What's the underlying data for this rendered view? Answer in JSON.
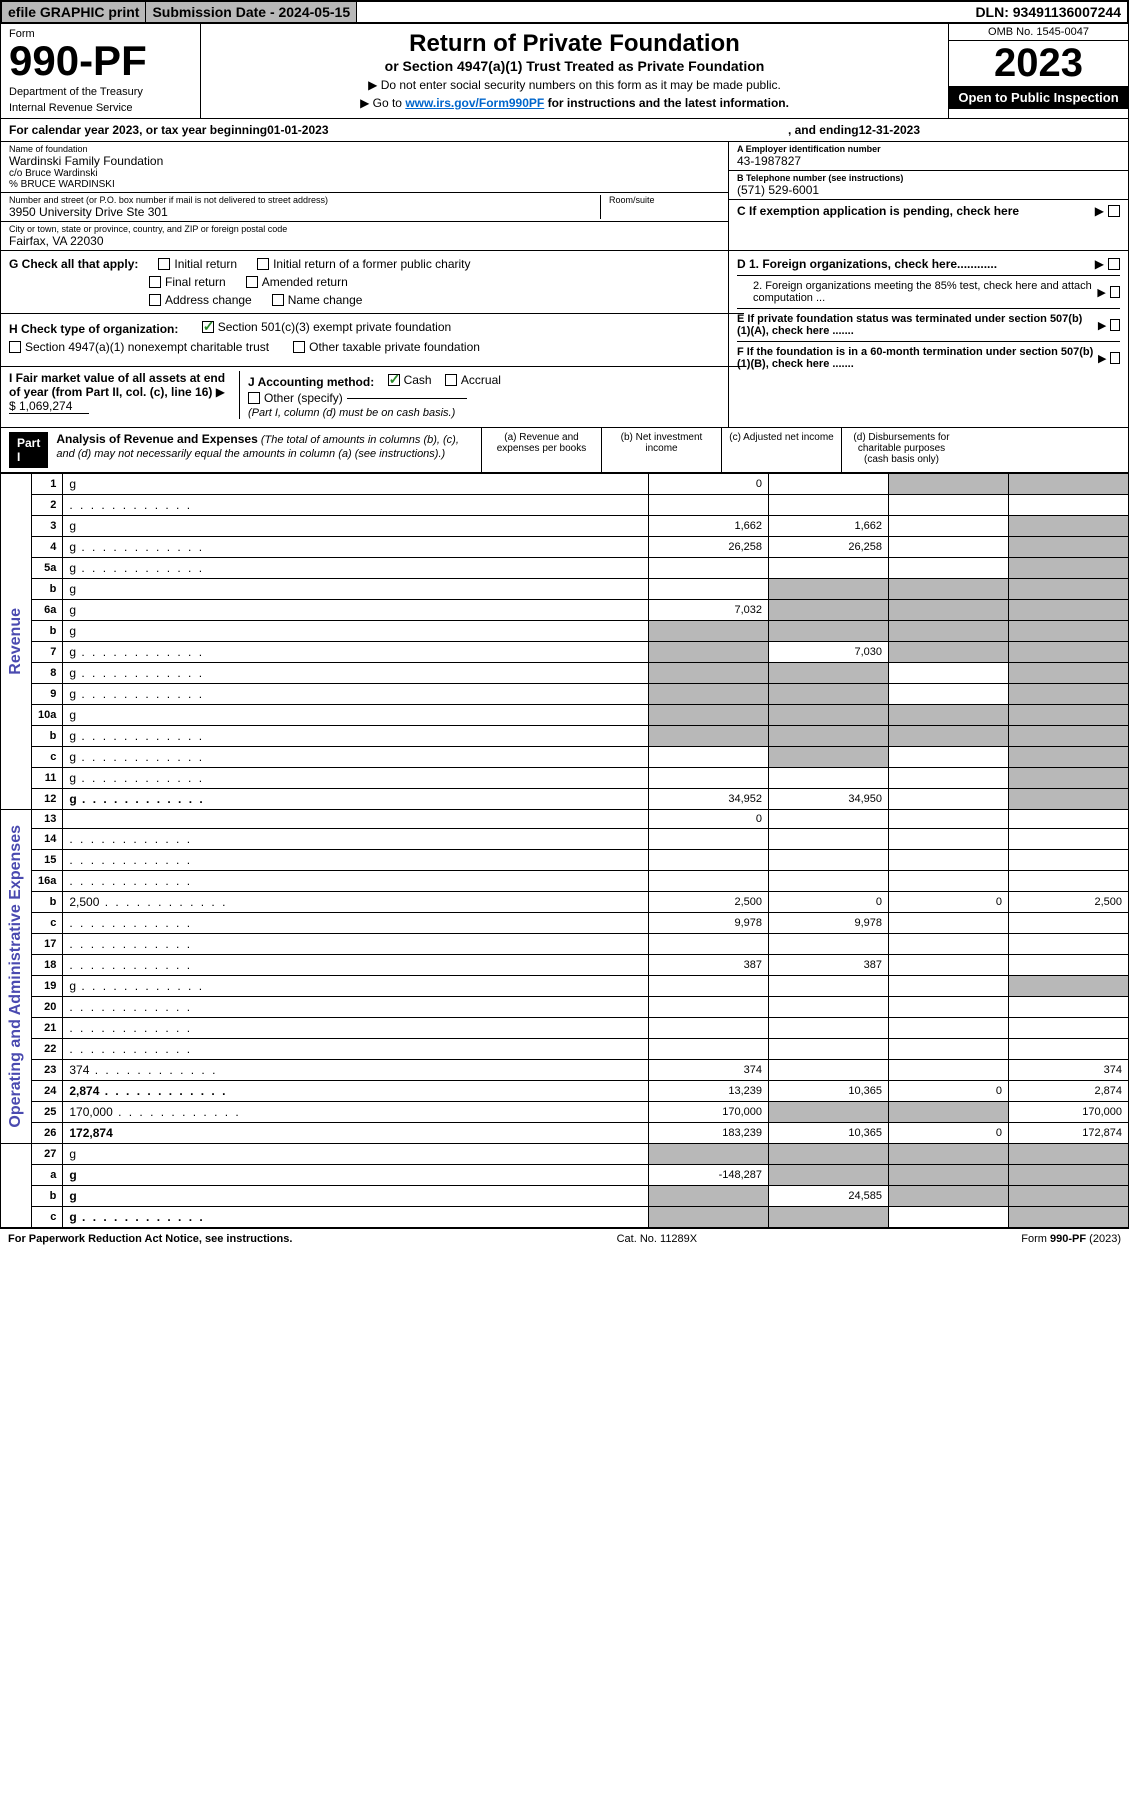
{
  "top": {
    "efile": "efile GRAPHIC print",
    "submission": "Submission Date - 2024-05-15",
    "dln": "DLN: 93491136007244"
  },
  "header": {
    "form_label": "Form",
    "form_num": "990-PF",
    "dept1": "Department of the Treasury",
    "dept2": "Internal Revenue Service",
    "title": "Return of Private Foundation",
    "subtitle": "or Section 4947(a)(1) Trust Treated as Private Foundation",
    "note1": "▶ Do not enter social security numbers on this form as it may be made public.",
    "note2_prefix": "▶ Go to ",
    "note2_link": "www.irs.gov/Form990PF",
    "note2_suffix": " for instructions and the latest information.",
    "omb": "OMB No. 1545-0047",
    "year": "2023",
    "open": "Open to Public Inspection"
  },
  "cal_year": {
    "prefix": "For calendar year 2023, or tax year beginning ",
    "begin": "01-01-2023",
    "mid": ", and ending ",
    "end": "12-31-2023"
  },
  "info": {
    "name_label": "Name of foundation",
    "name1": "Wardinski Family Foundation",
    "name2": "c/o Bruce Wardinski",
    "name3": "% BRUCE WARDINSKI",
    "street_label": "Number and street (or P.O. box number if mail is not delivered to street address)",
    "street": "3950 University Drive Ste 301",
    "room_label": "Room/suite",
    "city_label": "City or town, state or province, country, and ZIP or foreign postal code",
    "city": "Fairfax, VA  22030",
    "ein_label": "A Employer identification number",
    "ein": "43-1987827",
    "phone_label": "B Telephone number (see instructions)",
    "phone": "(571) 529-6001",
    "c_label": "C If exemption application is pending, check here",
    "d1_label": "D 1. Foreign organizations, check here............",
    "d2_label": "2. Foreign organizations meeting the 85% test, check here and attach computation ...",
    "e_label": "E If private foundation status was terminated under section 507(b)(1)(A), check here .......",
    "f_label": "F If the foundation is in a 60-month termination under section 507(b)(1)(B), check here .......",
    "g_label": "G Check all that apply:",
    "g_opts": [
      "Initial return",
      "Initial return of a former public charity",
      "Final return",
      "Amended return",
      "Address change",
      "Name change"
    ],
    "h_label": "H Check type of organization:",
    "h_opt1": "Section 501(c)(3) exempt private foundation",
    "h_opt2": "Section 4947(a)(1) nonexempt charitable trust",
    "h_opt3": "Other taxable private foundation",
    "i_label": "I Fair market value of all assets at end of year (from Part II, col. (c), line 16)",
    "i_val": "$  1,069,274",
    "j_label": "J Accounting method:",
    "j_cash": "Cash",
    "j_accrual": "Accrual",
    "j_other": "Other (specify)",
    "j_note": "(Part I, column (d) must be on cash basis.)"
  },
  "part1": {
    "label": "Part I",
    "title": "Analysis of Revenue and Expenses",
    "title_note": " (The total of amounts in columns (b), (c), and (d) may not necessarily equal the amounts in column (a) (see instructions).)",
    "col_a": "(a) Revenue and expenses per books",
    "col_b": "(b) Net investment income",
    "col_c": "(c) Adjusted net income",
    "col_d": "(d) Disbursements for charitable purposes (cash basis only)"
  },
  "rows": [
    {
      "n": "1",
      "d": "g",
      "a": "0",
      "b": "",
      "c": "g",
      "sec": "rev"
    },
    {
      "n": "2",
      "d": "",
      "a": "",
      "b": "",
      "c": "",
      "sec": "rev",
      "dots": true
    },
    {
      "n": "3",
      "d": "g",
      "a": "1,662",
      "b": "1,662",
      "c": "",
      "sec": "rev"
    },
    {
      "n": "4",
      "d": "g",
      "a": "26,258",
      "b": "26,258",
      "c": "",
      "sec": "rev",
      "dots": true
    },
    {
      "n": "5a",
      "d": "g",
      "a": "",
      "b": "",
      "c": "",
      "sec": "rev",
      "dots": true
    },
    {
      "n": "b",
      "d": "g",
      "a": "",
      "b": "g",
      "c": "g",
      "sec": "rev",
      "inset": true
    },
    {
      "n": "6a",
      "d": "g",
      "a": "7,032",
      "b": "g",
      "c": "g",
      "sec": "rev"
    },
    {
      "n": "b",
      "d": "g",
      "a": "g",
      "b": "g",
      "c": "g",
      "sec": "rev"
    },
    {
      "n": "7",
      "d": "g",
      "a": "g",
      "b": "7,030",
      "c": "g",
      "sec": "rev",
      "dots": true
    },
    {
      "n": "8",
      "d": "g",
      "a": "g",
      "b": "g",
      "c": "",
      "sec": "rev",
      "dots": true
    },
    {
      "n": "9",
      "d": "g",
      "a": "g",
      "b": "g",
      "c": "",
      "sec": "rev",
      "dots": true
    },
    {
      "n": "10a",
      "d": "g",
      "a": "g",
      "b": "g",
      "c": "g",
      "sec": "rev",
      "inset": true
    },
    {
      "n": "b",
      "d": "g",
      "a": "g",
      "b": "g",
      "c": "g",
      "sec": "rev",
      "dots": true,
      "inset": true
    },
    {
      "n": "c",
      "d": "g",
      "a": "",
      "b": "g",
      "c": "",
      "sec": "rev",
      "dots": true
    },
    {
      "n": "11",
      "d": "g",
      "a": "",
      "b": "",
      "c": "",
      "sec": "rev",
      "dots": true
    },
    {
      "n": "12",
      "d": "g",
      "a": "34,952",
      "b": "34,950",
      "c": "",
      "sec": "rev",
      "bold": true,
      "dots": true
    },
    {
      "n": "13",
      "d": "",
      "a": "0",
      "b": "",
      "c": "",
      "sec": "exp"
    },
    {
      "n": "14",
      "d": "",
      "a": "",
      "b": "",
      "c": "",
      "sec": "exp",
      "dots": true
    },
    {
      "n": "15",
      "d": "",
      "a": "",
      "b": "",
      "c": "",
      "sec": "exp",
      "dots": true
    },
    {
      "n": "16a",
      "d": "",
      "a": "",
      "b": "",
      "c": "",
      "sec": "exp",
      "dots": true
    },
    {
      "n": "b",
      "d": "2,500",
      "a": "2,500",
      "b": "0",
      "c": "0",
      "sec": "exp",
      "dots": true
    },
    {
      "n": "c",
      "d": "",
      "a": "9,978",
      "b": "9,978",
      "c": "",
      "sec": "exp",
      "dots": true
    },
    {
      "n": "17",
      "d": "",
      "a": "",
      "b": "",
      "c": "",
      "sec": "exp",
      "dots": true
    },
    {
      "n": "18",
      "d": "",
      "a": "387",
      "b": "387",
      "c": "",
      "sec": "exp",
      "dots": true
    },
    {
      "n": "19",
      "d": "g",
      "a": "",
      "b": "",
      "c": "",
      "sec": "exp",
      "dots": true
    },
    {
      "n": "20",
      "d": "",
      "a": "",
      "b": "",
      "c": "",
      "sec": "exp",
      "dots": true
    },
    {
      "n": "21",
      "d": "",
      "a": "",
      "b": "",
      "c": "",
      "sec": "exp",
      "dots": true
    },
    {
      "n": "22",
      "d": "",
      "a": "",
      "b": "",
      "c": "",
      "sec": "exp",
      "dots": true
    },
    {
      "n": "23",
      "d": "374",
      "a": "374",
      "b": "",
      "c": "",
      "sec": "exp",
      "dots": true
    },
    {
      "n": "24",
      "d": "2,874",
      "a": "13,239",
      "b": "10,365",
      "c": "0",
      "sec": "exp",
      "bold": true,
      "dots": true
    },
    {
      "n": "25",
      "d": "170,000",
      "a": "170,000",
      "b": "g",
      "c": "g",
      "sec": "exp",
      "dots": true
    },
    {
      "n": "26",
      "d": "172,874",
      "a": "183,239",
      "b": "10,365",
      "c": "0",
      "sec": "exp",
      "bold": true
    },
    {
      "n": "27",
      "d": "g",
      "a": "g",
      "b": "g",
      "c": "g",
      "sec": "none"
    },
    {
      "n": "a",
      "d": "g",
      "a": "-148,287",
      "b": "g",
      "c": "g",
      "sec": "none",
      "bold": true
    },
    {
      "n": "b",
      "d": "g",
      "a": "g",
      "b": "24,585",
      "c": "g",
      "sec": "none",
      "bold": true
    },
    {
      "n": "c",
      "d": "g",
      "a": "g",
      "b": "g",
      "c": "",
      "sec": "none",
      "bold": true,
      "dots": true
    }
  ],
  "side_labels": {
    "revenue": "Revenue",
    "expenses": "Operating and Administrative Expenses"
  },
  "footer": {
    "left": "For Paperwork Reduction Act Notice, see instructions.",
    "mid": "Cat. No. 11289X",
    "right": "Form 990-PF (2023)"
  }
}
